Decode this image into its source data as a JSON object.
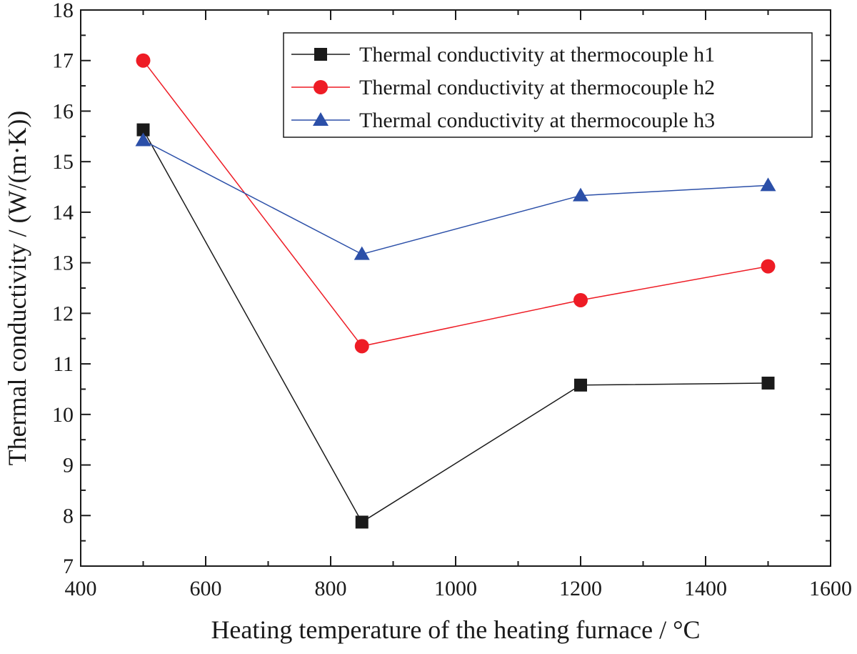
{
  "chart_data": {
    "type": "line",
    "title": "",
    "xlabel": "Heating temperature of the heating furnace / °C",
    "ylabel": "Thermal conductivity / (W/(m·K))",
    "xlim": [
      400,
      1600
    ],
    "ylim": [
      7,
      18
    ],
    "xticks": [
      400,
      600,
      800,
      1000,
      1200,
      1400,
      1600
    ],
    "yticks": [
      7,
      8,
      9,
      10,
      11,
      12,
      13,
      14,
      15,
      16,
      17,
      18
    ],
    "grid": false,
    "legend_position": "top-right",
    "x": [
      500,
      850,
      1200,
      1500
    ],
    "series": [
      {
        "name": "Thermal conductivity at thermocouple h1",
        "marker": "square",
        "color": "#1a1a1a",
        "values": [
          15.63,
          7.87,
          10.58,
          10.62
        ]
      },
      {
        "name": "Thermal conductivity at thermocouple h2",
        "marker": "circle",
        "color": "#ee1c25",
        "values": [
          17.0,
          11.35,
          12.26,
          12.93
        ]
      },
      {
        "name": "Thermal conductivity at thermocouple h3",
        "marker": "triangle",
        "color": "#2b4fa8",
        "values": [
          15.42,
          13.17,
          14.33,
          14.53
        ]
      }
    ]
  }
}
